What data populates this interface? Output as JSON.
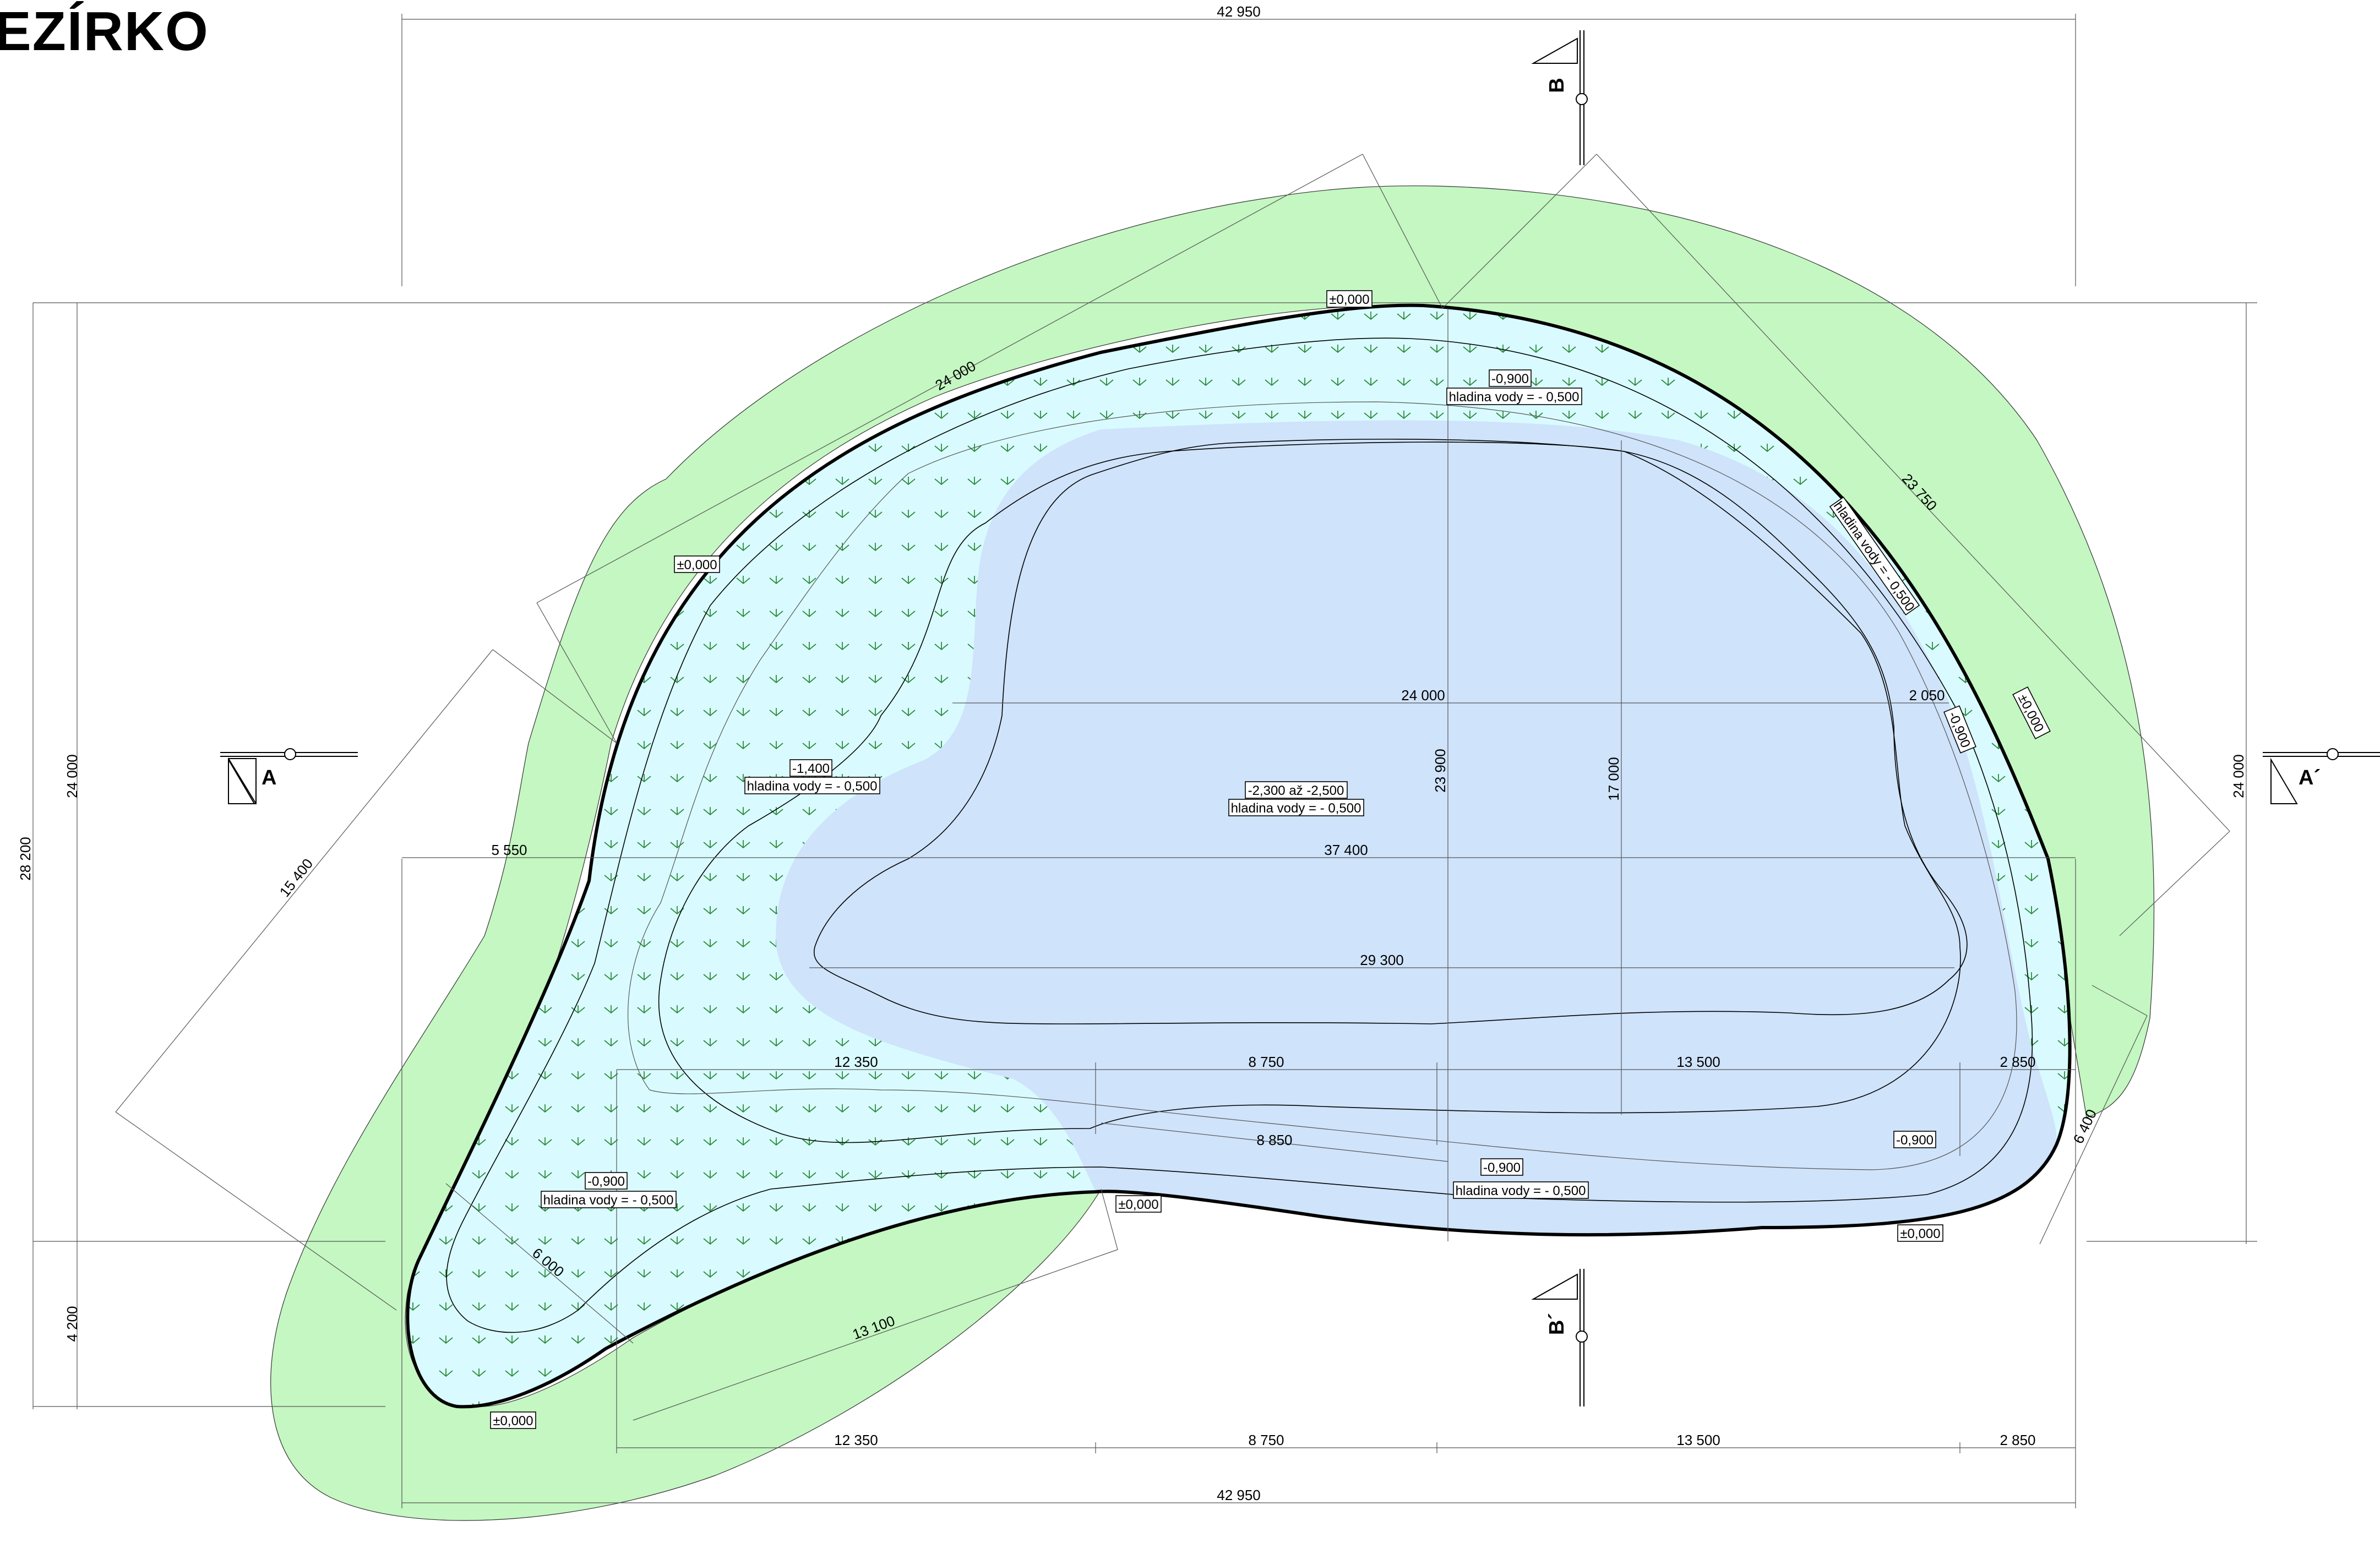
{
  "title": "EZÍRKO",
  "dimensions": {
    "overall_width": "42 950",
    "overall_width_bottom": "42 950",
    "inner_height_left": "24 000",
    "inner_height_right": "24 000",
    "total_height": "28 200",
    "lower_height": "4 200",
    "diag_top_left": "24 000",
    "diag_top_right": "23 750",
    "diag_left": "15 400",
    "diag_right": "6 400",
    "diag_bottom": "13 100",
    "diag_bottom_small": "6 000",
    "pool_width": "24 000",
    "pool_right_small": "2 050",
    "pool_height_mid": "23 900",
    "pool_height_right": "17 000",
    "left_offset": "5 550",
    "mid_width": "37 400",
    "deep_width": "29 300",
    "seg1": "12 350",
    "seg2": "8 750",
    "seg3": "13 500",
    "seg4": "2 850",
    "seg_diag": "8 850",
    "seg1_b": "12 350",
    "seg2_b": "8 750",
    "seg3_b": "13 500",
    "seg4_b": "2 850"
  },
  "levels": {
    "top": "±0,000",
    "left_upper": "±0,000",
    "right": "±0,000",
    "bottom_mid": "±0,000",
    "bottom_right": "±0,000",
    "bottom_left": "±0,000",
    "shallow_top": "-0,900",
    "shallow_top_water": "hladina vody = - 0,500",
    "shallow_right": "hladina vody = - 0,500",
    "shallow_right_lvl": "-0,900",
    "left_mid": "-1,400",
    "left_mid_water": "hladina vody = - 0,500",
    "deep": "-2,300 až -2,500",
    "deep_water": "hladina vody = - 0,500",
    "bottom_left_lvl": "-0,900",
    "bottom_left_water": "hladina vody = - 0,500",
    "bottom_mid_lvl": "-0,900",
    "bottom_mid_water": "hladina vody = - 0,500",
    "bottom_right_lvl": "-0,900"
  },
  "sections": {
    "a": "A",
    "a_prime": "A´",
    "b": "B",
    "b_prime": "B´"
  },
  "colors": {
    "grass": "#c4f7c1",
    "shallow": "#d9fbff",
    "deep": "#cfe3fb",
    "plants": "#2e8b3d"
  }
}
